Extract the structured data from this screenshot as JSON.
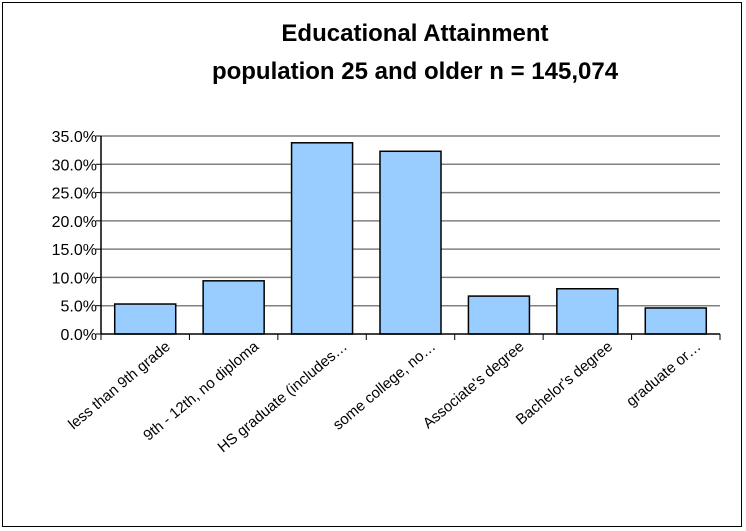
{
  "chart_data": {
    "type": "bar",
    "title": "Educational Attainment",
    "subtitle": "population 25 and older n = 145,074",
    "xlabel": "",
    "ylabel": "",
    "categories": [
      "less than 9th grade",
      "9th - 12th, no diploma",
      "HS graduate (includes…",
      "some college, no…",
      "Associate's degree",
      "Bachelor's degree",
      "graduate or…"
    ],
    "values": [
      5.3,
      9.4,
      33.8,
      32.3,
      6.7,
      8.0,
      4.6
    ],
    "ylim": [
      0,
      35
    ],
    "yticks": [
      "0.0%",
      "5.0%",
      "10.0%",
      "15.0%",
      "20.0%",
      "25.0%",
      "30.0%",
      "35.0%"
    ],
    "grid": true,
    "legend": "none",
    "colors": {
      "bar_fill": "#99ccff",
      "bar_stroke": "#000000",
      "grid": "#808080"
    }
  }
}
